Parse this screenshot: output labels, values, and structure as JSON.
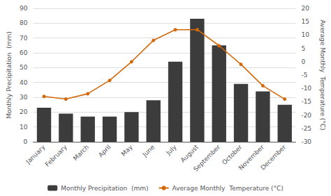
{
  "chart_data": {
    "type": "bar",
    "categories": [
      "January",
      "February",
      "March",
      "April",
      "May",
      "June",
      "July",
      "August",
      "September",
      "October",
      "November",
      "December"
    ],
    "series": [
      {
        "name": "Monthly Precipitation  (mm)",
        "type": "bar",
        "color": "#3c3c3c",
        "values": [
          23,
          19,
          17,
          17,
          20,
          28,
          54,
          83,
          65,
          39,
          34,
          25
        ]
      },
      {
        "name": "Average Monthly  Temperature (°C)",
        "type": "line",
        "color": "#d4690a",
        "marker": "circle",
        "axis": "y2",
        "values": [
          -13,
          -14,
          -12,
          -7,
          0,
          8,
          12,
          12,
          6,
          -1,
          -9,
          -14
        ]
      }
    ],
    "ylabel": "Monthly Precipitation  (mm)",
    "y2label": "Average Monthly  Temperature (°C)",
    "ylim": [
      0,
      90
    ],
    "yticks": [
      0,
      10,
      20,
      30,
      40,
      50,
      60,
      70,
      80,
      90
    ],
    "y2lim": [
      -30,
      20
    ],
    "y2ticks": [
      -30,
      -25,
      -20,
      -15,
      -10,
      -5,
      0,
      5,
      10,
      15,
      20
    ],
    "grid": true,
    "legend": "bottom"
  }
}
